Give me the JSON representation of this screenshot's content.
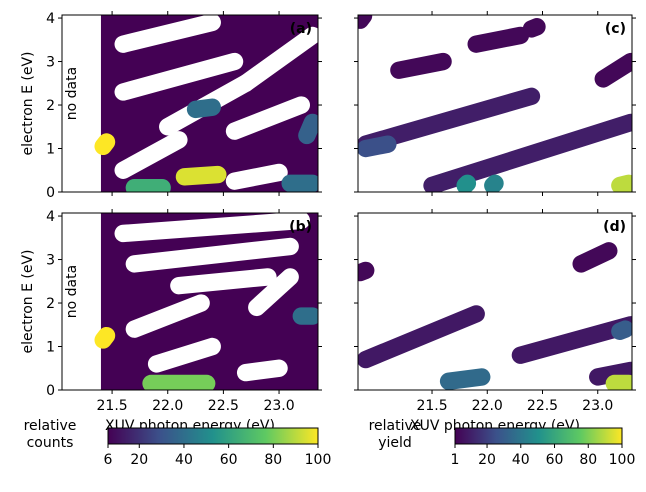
{
  "chart_data": [
    {
      "type": "heatmap",
      "panel_label": "(a)",
      "ylabel": "electron E (eV)",
      "annotation": "no data",
      "data_start": 21.4,
      "colorbar": 0,
      "xlim": [
        21.05,
        23.35
      ],
      "ylim": [
        0,
        4.07
      ],
      "yticks": [
        0,
        1,
        2,
        3,
        4
      ],
      "xticks": [
        {
          "value": 21.5,
          "label": "21.5"
        },
        {
          "value": 22,
          "label": "22.0"
        },
        {
          "value": 22.5,
          "label": "22.5"
        },
        {
          "value": 23,
          "label": "23.0"
        }
      ],
      "features": [
        {
          "x": [
            21.6,
            22.4
          ],
          "y": [
            3.4,
            3.9
          ],
          "value": null
        },
        {
          "x": [
            21.6,
            22.6
          ],
          "y": [
            2.3,
            3.0
          ],
          "value": null
        },
        {
          "x": [
            22.7,
            23.3
          ],
          "y": [
            2.5,
            3.6
          ],
          "value": null
        },
        {
          "x": [
            22.0,
            22.7
          ],
          "y": [
            1.5,
            2.5
          ],
          "value": null
        },
        {
          "x": [
            22.6,
            23.2
          ],
          "y": [
            1.4,
            2.0
          ],
          "value": null
        },
        {
          "x": [
            21.6,
            22.1
          ],
          "y": [
            0.5,
            1.2
          ],
          "value": null
        },
        {
          "x": [
            22.6,
            23.0
          ],
          "y": [
            0.25,
            0.45
          ],
          "value": null
        },
        {
          "x": [
            21.42,
            21.45
          ],
          "y": [
            1.05,
            1.15
          ],
          "value": 100
        },
        {
          "x": [
            22.15,
            22.45
          ],
          "y": [
            0.35,
            0.4
          ],
          "value": 95
        },
        {
          "x": [
            21.7,
            21.95
          ],
          "y": [
            0.1,
            0.1
          ],
          "value": 65
        },
        {
          "x": [
            22.25,
            22.4
          ],
          "y": [
            1.9,
            1.95
          ],
          "value": 40
        },
        {
          "x": [
            23.1,
            23.3
          ],
          "y": [
            0.2,
            0.2
          ],
          "value": 40
        },
        {
          "x": [
            23.25,
            23.3
          ],
          "y": [
            1.3,
            1.6
          ],
          "value": 35
        }
      ]
    },
    {
      "type": "heatmap",
      "panel_label": "(b)",
      "ylabel": "electron E (eV)",
      "xlabel": "XUV photon energy (eV)",
      "annotation": "no data",
      "data_start": 21.4,
      "colorbar": 0,
      "xlim": [
        21.05,
        23.35
      ],
      "ylim": [
        0,
        4.07
      ],
      "yticks": [
        0,
        1,
        2,
        3,
        4
      ],
      "xticks": [
        {
          "value": 21.5,
          "label": "21.5"
        },
        {
          "value": 22,
          "label": "22.0"
        },
        {
          "value": 22.5,
          "label": "22.5"
        },
        {
          "value": 23,
          "label": "23.0"
        }
      ],
      "features": [
        {
          "x": [
            21.6,
            23.2
          ],
          "y": [
            3.6,
            3.9
          ],
          "value": null
        },
        {
          "x": [
            21.7,
            23.1
          ],
          "y": [
            2.9,
            3.3
          ],
          "value": null
        },
        {
          "x": [
            22.1,
            22.9
          ],
          "y": [
            2.4,
            2.6
          ],
          "value": null
        },
        {
          "x": [
            21.7,
            22.3
          ],
          "y": [
            1.4,
            2.0
          ],
          "value": null
        },
        {
          "x": [
            22.8,
            23.1
          ],
          "y": [
            1.9,
            2.6
          ],
          "value": null
        },
        {
          "x": [
            21.9,
            22.4
          ],
          "y": [
            0.6,
            1.0
          ],
          "value": null
        },
        {
          "x": [
            22.7,
            23.0
          ],
          "y": [
            0.4,
            0.5
          ],
          "value": null
        },
        {
          "x": [
            21.42,
            21.45
          ],
          "y": [
            1.15,
            1.25
          ],
          "value": 100
        },
        {
          "x": [
            21.85,
            22.35
          ],
          "y": [
            0.15,
            0.15
          ],
          "value": 80
        },
        {
          "x": [
            23.2,
            23.3
          ],
          "y": [
            1.7,
            1.7
          ],
          "value": 40
        }
      ]
    },
    {
      "type": "heatmap",
      "panel_label": "(c)",
      "colorbar": 1,
      "xlim": [
        20.83,
        23.31
      ],
      "ylim": [
        0,
        4.07
      ],
      "yticks": [
        0,
        1,
        2,
        3,
        4
      ],
      "xticks": [
        {
          "value": 21.5,
          "label": "21.5"
        },
        {
          "value": 22,
          "label": "22.0"
        },
        {
          "value": 22.5,
          "label": "22.5"
        },
        {
          "value": 23,
          "label": "23.0"
        }
      ],
      "features": [
        {
          "x": [
            20.85,
            20.88
          ],
          "y": [
            3.95,
            4.05
          ],
          "value": 3
        },
        {
          "x": [
            21.2,
            21.6
          ],
          "y": [
            2.8,
            3.0
          ],
          "value": 3
        },
        {
          "x": [
            21.9,
            22.3
          ],
          "y": [
            3.4,
            3.6
          ],
          "value": 3
        },
        {
          "x": [
            22.4,
            22.45
          ],
          "y": [
            3.75,
            3.8
          ],
          "value": 3
        },
        {
          "x": [
            23.05,
            23.3
          ],
          "y": [
            2.6,
            3.0
          ],
          "value": 3
        },
        {
          "x": [
            20.9,
            22.4
          ],
          "y": [
            1.1,
            2.2
          ],
          "value": 10
        },
        {
          "x": [
            21.5,
            23.3
          ],
          "y": [
            0.15,
            1.6
          ],
          "value": 10
        },
        {
          "x": [
            20.9,
            21.1
          ],
          "y": [
            1.0,
            1.1
          ],
          "value": 25
        },
        {
          "x": [
            21.8,
            21.82
          ],
          "y": [
            0.15,
            0.2
          ],
          "value": 50
        },
        {
          "x": [
            22.05,
            22.07
          ],
          "y": [
            0.15,
            0.2
          ],
          "value": 45
        },
        {
          "x": [
            23.2,
            23.28
          ],
          "y": [
            0.15,
            0.2
          ],
          "value": 90
        }
      ]
    },
    {
      "type": "heatmap",
      "panel_label": "(d)",
      "xlabel": "XUV photon energy (eV)",
      "colorbar": 1,
      "xlim": [
        20.83,
        23.31
      ],
      "ylim": [
        0,
        4.07
      ],
      "yticks": [
        0,
        1,
        2,
        3,
        4
      ],
      "xticks": [
        {
          "value": 21.5,
          "label": "21.5"
        },
        {
          "value": 22,
          "label": "22.0"
        },
        {
          "value": 22.5,
          "label": "22.5"
        },
        {
          "value": 23,
          "label": "23.0"
        }
      ],
      "features": [
        {
          "x": [
            20.85,
            20.9
          ],
          "y": [
            2.7,
            2.75
          ],
          "value": 3
        },
        {
          "x": [
            20.9,
            21.9
          ],
          "y": [
            0.7,
            1.75
          ],
          "value": 8
        },
        {
          "x": [
            22.85,
            23.1
          ],
          "y": [
            2.9,
            3.2
          ],
          "value": 3
        },
        {
          "x": [
            22.3,
            23.3
          ],
          "y": [
            0.8,
            1.5
          ],
          "value": 8
        },
        {
          "x": [
            23.2,
            23.25
          ],
          "y": [
            1.35,
            1.4
          ],
          "value": 30
        },
        {
          "x": [
            21.65,
            21.95
          ],
          "y": [
            0.2,
            0.3
          ],
          "value": 35
        },
        {
          "x": [
            23.0,
            23.3
          ],
          "y": [
            0.3,
            0.45
          ],
          "value": 8
        },
        {
          "x": [
            23.15,
            23.28
          ],
          "y": [
            0.15,
            0.15
          ],
          "value": 90
        }
      ]
    }
  ],
  "colorbars": [
    {
      "label_lines": [
        "relative",
        "counts"
      ],
      "lim": [
        6,
        100
      ],
      "ticks": [
        6,
        20,
        40,
        60,
        80,
        100
      ]
    },
    {
      "label_lines": [
        "relative",
        "yield"
      ],
      "lim": [
        1,
        100
      ],
      "ticks": [
        1,
        20,
        40,
        60,
        80,
        100
      ]
    }
  ]
}
